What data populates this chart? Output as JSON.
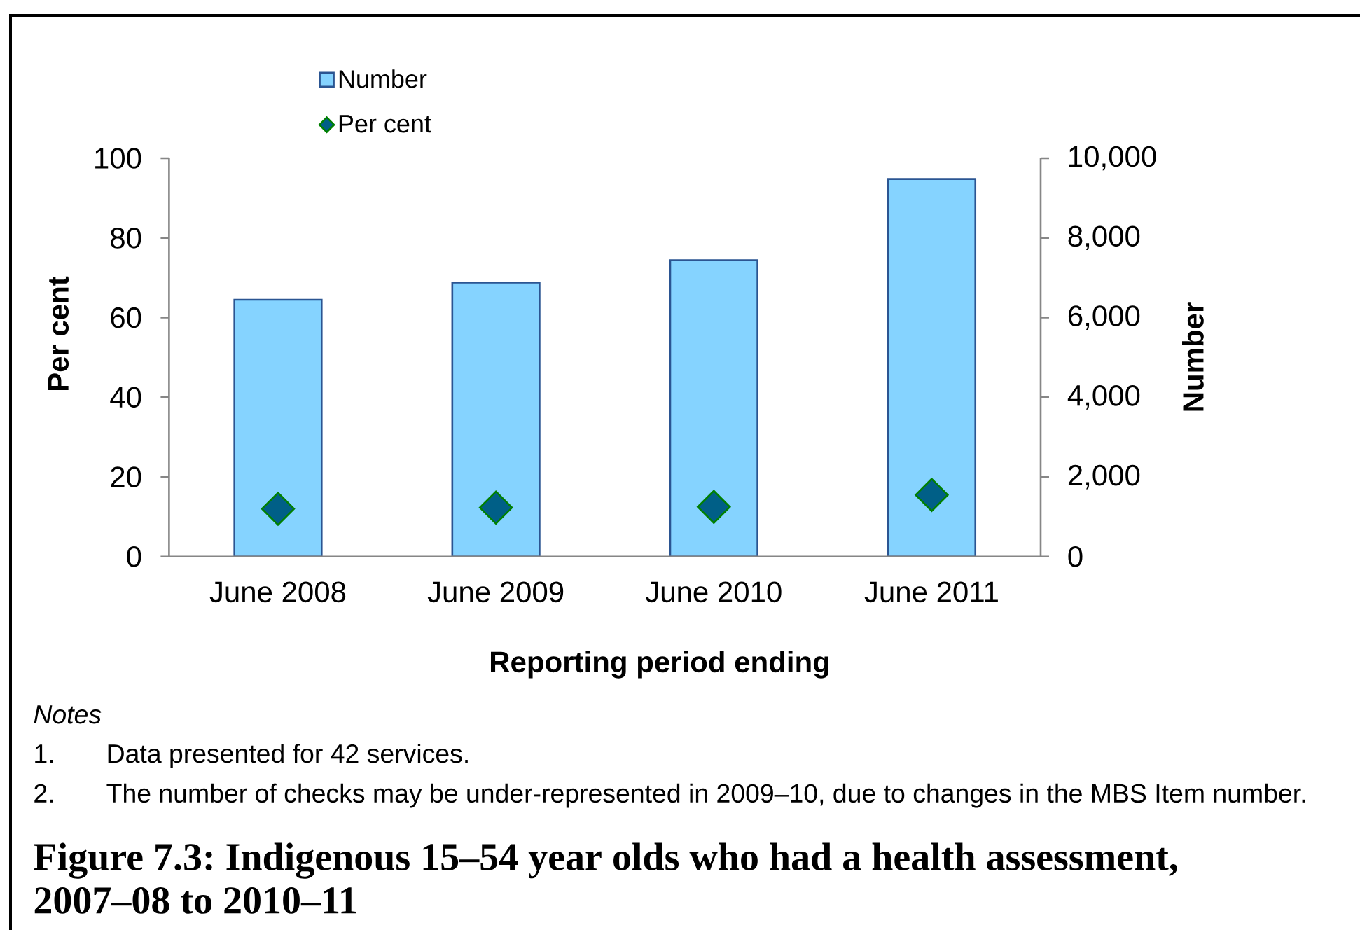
{
  "chart_data": {
    "type": "bar",
    "title": "Figure 7.3: Indigenous 15–54 year olds who had a health assessment, 2007–08 to 2010–11",
    "xlabel": "Reporting period ending",
    "ylabel": "Per cent",
    "y2label": "Number",
    "categories": [
      "June 2008",
      "June 2009",
      "June 2010",
      "June 2011"
    ],
    "series": [
      {
        "name": "Number",
        "axis": "y2",
        "color": "#85d3ff",
        "values": [
          6450,
          6880,
          7440,
          9480
        ]
      },
      {
        "name": "Per cent",
        "type": "scatter",
        "marker": "diamond",
        "color": "#005f87",
        "values": [
          12.0,
          12.3,
          12.5,
          15.5
        ]
      }
    ],
    "ylim": [
      0,
      100
    ],
    "yticks": [
      0,
      20,
      40,
      60,
      80,
      100
    ],
    "y2lim": [
      0,
      10000
    ],
    "y2ticks": [
      0,
      {
        "value": 2000,
        "label": "2,000"
      },
      {
        "value": 4000,
        "label": "4,000"
      },
      {
        "value": 6000,
        "label": "6,000"
      },
      {
        "value": 8000,
        "label": "8,000"
      },
      {
        "value": 10000,
        "label": "10,000"
      }
    ],
    "legend": "top",
    "annotations": [
      "Notes",
      "1.",
      "Data presented for 42 services.",
      "2.",
      "The number of checks may be under-represented in 2009–10, due to changes in the MBS Item number."
    ]
  }
}
